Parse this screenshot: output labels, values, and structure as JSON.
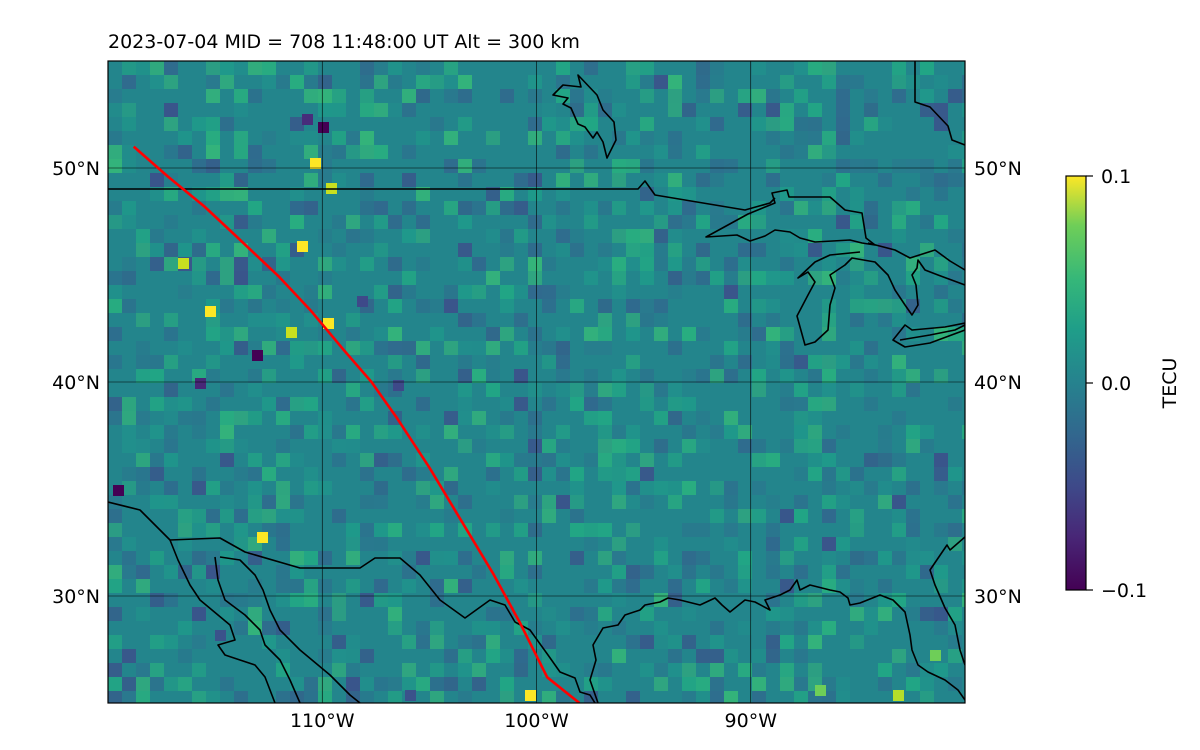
{
  "map": {
    "title": "2023-07-04  MID = 708    11:48:00  UT  Alt = 300 km",
    "lon_range": [
      -120,
      -80
    ],
    "lat_range": [
      25,
      55
    ],
    "lon_ticks": [
      {
        "value": -110,
        "label": "110°W"
      },
      {
        "value": -100,
        "label": "100°W"
      },
      {
        "value": -90,
        "label": "90°W"
      }
    ],
    "lat_ticks": [
      {
        "value": 50,
        "label": "50°N"
      },
      {
        "value": 40,
        "label": "40°N"
      },
      {
        "value": 30,
        "label": "30°N"
      }
    ],
    "track_color": "#ff0000",
    "track": [
      [
        -118.8,
        51.0
      ],
      [
        -117.2,
        49.6
      ],
      [
        -115.5,
        48.2
      ],
      [
        -114.0,
        46.8
      ],
      [
        -112.0,
        44.9
      ],
      [
        -110.5,
        43.3
      ],
      [
        -109.0,
        41.5
      ],
      [
        -107.7,
        40.0
      ],
      [
        -106.5,
        38.3
      ],
      [
        -105.0,
        36.0
      ],
      [
        -103.5,
        33.5
      ],
      [
        -102.0,
        31.0
      ],
      [
        -100.8,
        28.8
      ],
      [
        -99.5,
        26.2
      ],
      [
        -98.0,
        25.0
      ]
    ]
  },
  "colorbar": {
    "label": "TECU",
    "colormap": "viridis",
    "min": -0.1,
    "max": 0.1,
    "ticks": [
      {
        "value": 0.1,
        "label": "0.1"
      },
      {
        "value": 0.0,
        "label": "0.0"
      },
      {
        "value": -0.1,
        "label": "−0.1"
      }
    ]
  }
}
